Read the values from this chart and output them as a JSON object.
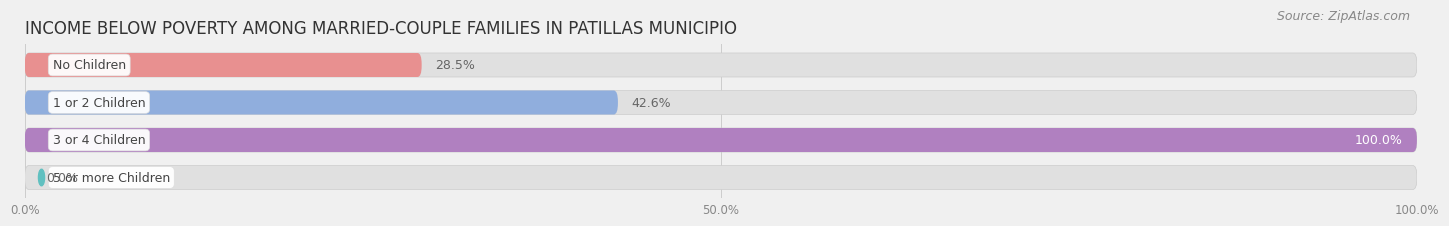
{
  "title": "INCOME BELOW POVERTY AMONG MARRIED-COUPLE FAMILIES IN PATILLAS MUNICIPIO",
  "source": "Source: ZipAtlas.com",
  "categories": [
    "No Children",
    "1 or 2 Children",
    "3 or 4 Children",
    "5 or more Children"
  ],
  "values": [
    28.5,
    42.6,
    100.0,
    0.0
  ],
  "bar_colors": [
    "#e89090",
    "#90aedd",
    "#b080c0",
    "#60c0c0"
  ],
  "bg_color": "#f0f0f0",
  "bar_bg_color": "#e0e0e0",
  "xlim": [
    0,
    100
  ],
  "xtick_labels": [
    "0.0%",
    "50.0%",
    "100.0%"
  ],
  "title_fontsize": 12,
  "source_fontsize": 9,
  "bar_label_fontsize": 9,
  "category_fontsize": 9
}
